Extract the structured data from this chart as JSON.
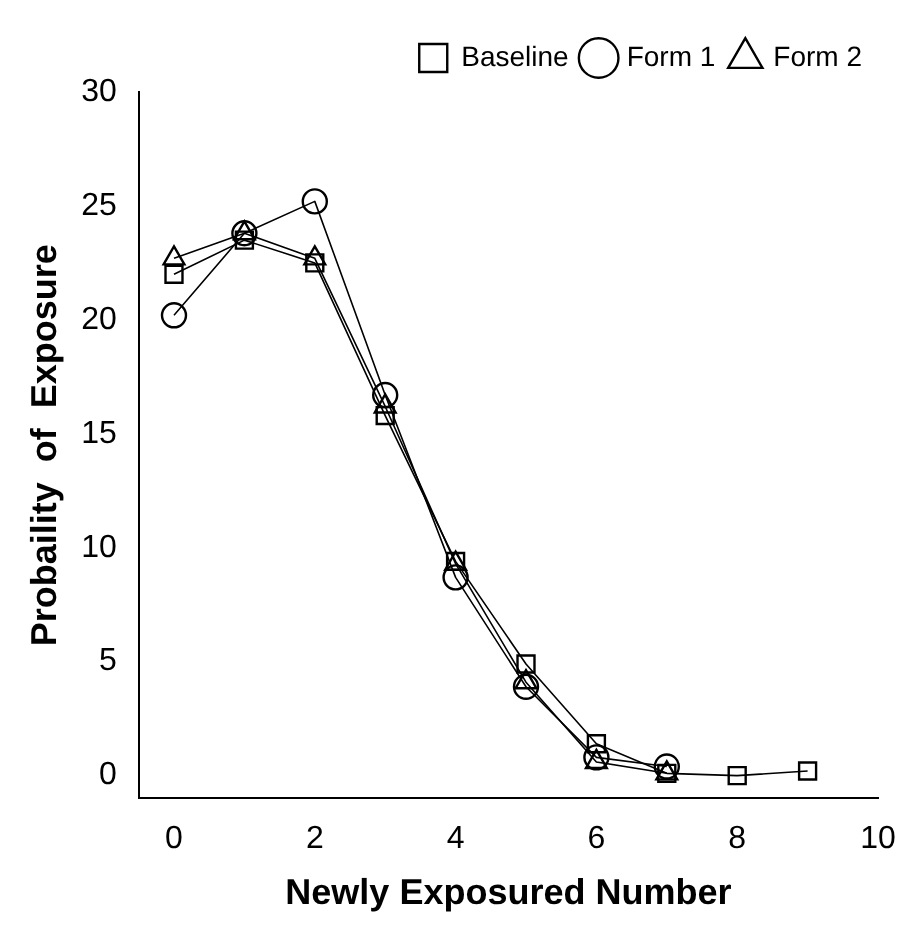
{
  "chart_data": {
    "type": "line",
    "xlabel": "Newly Exposured Number",
    "ylabel": "Probaility  of  Exposure",
    "xlim": [
      -0.5,
      10
    ],
    "xticks": [
      0,
      2,
      4,
      6,
      8,
      10
    ],
    "ylim": [
      -1,
      30
    ],
    "yticks": [
      0,
      5,
      10,
      15,
      20,
      25,
      30
    ],
    "grid": false,
    "legend": "top right",
    "series": [
      {
        "name": "Baseline",
        "color": "#000000",
        "marker": "square",
        "x": [
          0,
          1,
          2,
          3,
          4,
          5,
          6,
          7,
          8,
          9
        ],
        "values": [
          22.0,
          23.5,
          22.5,
          15.8,
          9.4,
          4.9,
          1.4,
          0.1,
          0.0,
          0.2
        ]
      },
      {
        "name": "Form 1",
        "color": "#000000",
        "marker": "circle",
        "x": [
          0,
          1,
          2,
          3,
          4,
          5,
          6,
          7
        ],
        "values": [
          20.2,
          23.8,
          25.2,
          16.7,
          8.7,
          3.9,
          0.8,
          0.4
        ]
      },
      {
        "name": "Form 2",
        "color": "#000000",
        "marker": "triangle",
        "x": [
          0,
          1,
          2,
          3,
          4,
          5,
          6,
          7
        ],
        "values": [
          22.7,
          23.8,
          22.7,
          16.2,
          9.3,
          4.1,
          0.6,
          0.1
        ]
      }
    ]
  }
}
